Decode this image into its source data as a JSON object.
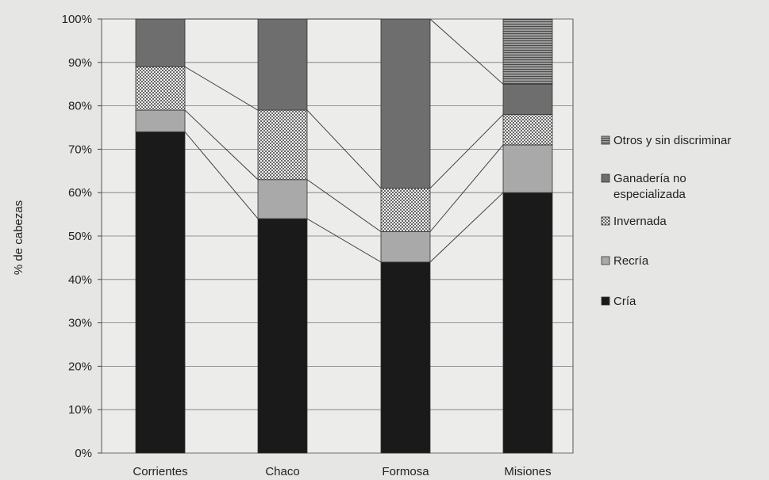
{
  "chart_data": {
    "type": "bar",
    "stacked": true,
    "percent": true,
    "ylabel": "% de cabezas",
    "xlabel": "",
    "ylim": [
      0,
      100
    ],
    "y_ticks": [
      "0%",
      "10%",
      "20%",
      "30%",
      "40%",
      "50%",
      "60%",
      "70%",
      "80%",
      "90%",
      "100%"
    ],
    "categories": [
      "Corrientes",
      "Chaco",
      "Formosa",
      "Misiones"
    ],
    "series": [
      {
        "name": "Cría",
        "values": [
          74,
          54,
          44,
          60
        ],
        "color": "#1a1a1a",
        "pattern": "solid"
      },
      {
        "name": "Recría",
        "values": [
          5,
          9,
          7,
          11
        ],
        "color": "#a9a9a9",
        "pattern": "solid"
      },
      {
        "name": "Invernada",
        "values": [
          10,
          16,
          10,
          7
        ],
        "color": "#ffffff",
        "pattern": "checker"
      },
      {
        "name": "Ganadería no especializada",
        "values": [
          11,
          21,
          39,
          7
        ],
        "color": "#6e6e6e",
        "pattern": "solid"
      },
      {
        "name": "Otros y sin discriminar",
        "values": [
          0,
          0,
          0,
          15
        ],
        "color": "#808080",
        "pattern": "horizontal-lines"
      }
    ],
    "legend_position": "right",
    "legend_labels": [
      {
        "series": "Otros y sin discriminar",
        "lines": [
          "Otros y sin discriminar"
        ]
      },
      {
        "series": "Ganadería no especializada",
        "lines": [
          "Ganadería no",
          "especializada"
        ]
      },
      {
        "series": "Invernada",
        "lines": [
          "Invernada"
        ]
      },
      {
        "series": "Recría",
        "lines": [
          "Recría"
        ]
      },
      {
        "series": "Cría",
        "lines": [
          "Cría"
        ]
      }
    ],
    "grid": true,
    "connector_lines": true
  }
}
